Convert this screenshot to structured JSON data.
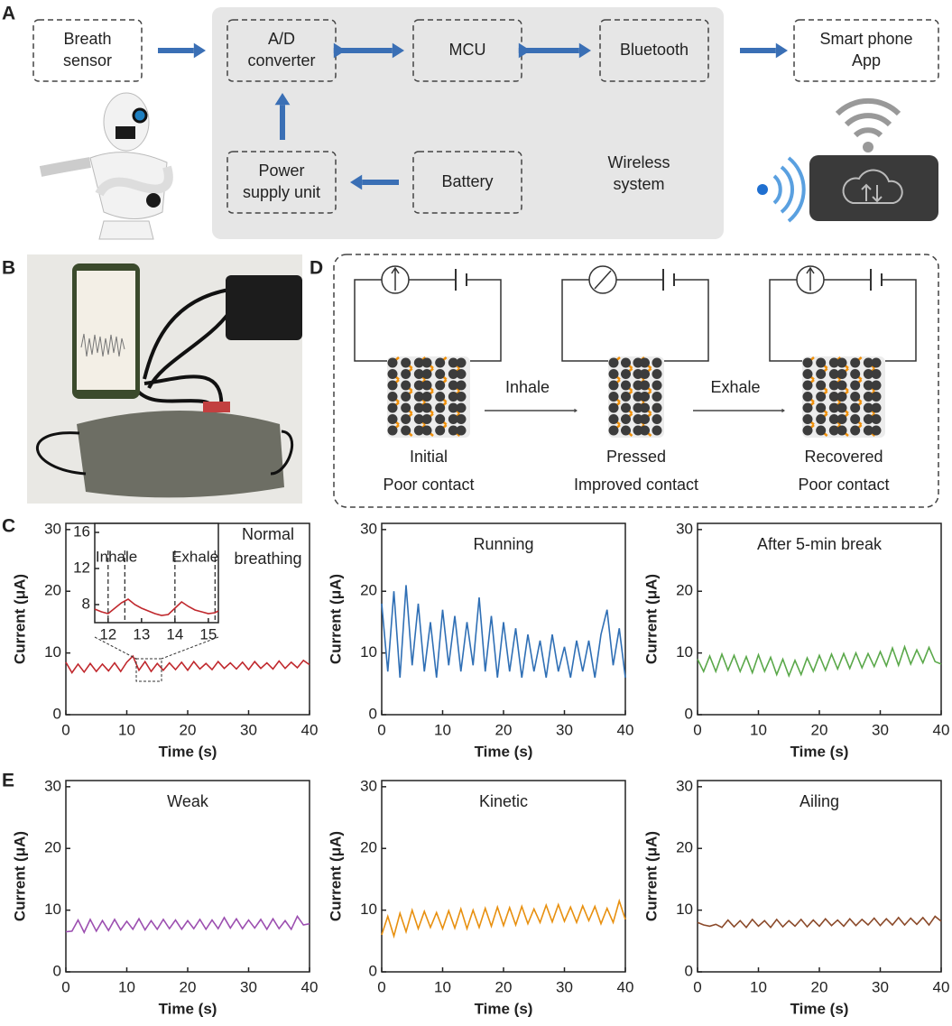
{
  "panels": [
    "A",
    "B",
    "C",
    "D",
    "E"
  ],
  "block_diagram": {
    "nodes": [
      [
        "Breath",
        "sensor"
      ],
      [
        "A/D",
        "converter"
      ],
      [
        "MCU"
      ],
      [
        "Bluetooth"
      ],
      [
        "Smart phone",
        "App"
      ],
      [
        "Power",
        "supply unit"
      ],
      [
        "Battery"
      ]
    ],
    "group_label": [
      "Wireless",
      "system"
    ]
  },
  "mechanism": {
    "states": [
      {
        "label": "Initial",
        "sublabel": "Poor contact"
      },
      {
        "label": "Pressed",
        "sublabel": "Improved contact"
      },
      {
        "label": "Recovered",
        "sublabel": "Poor contact"
      }
    ],
    "transitions": [
      "Inhale",
      "Exhale"
    ]
  },
  "chart_data": [
    {
      "type": "line",
      "title": [
        "Normal",
        "breathing"
      ],
      "xlabel": "Time (s)",
      "ylabel": "Current (μA)",
      "color": "#c0282d",
      "xlim": [
        0,
        40
      ],
      "xticks": [
        0,
        10,
        20,
        30,
        40
      ],
      "ylim": [
        0,
        31
      ],
      "yticks": [
        0,
        10,
        20,
        30
      ],
      "x": [
        0,
        1,
        2,
        3,
        4,
        5,
        6,
        7,
        8,
        9,
        10,
        11,
        12,
        13,
        14,
        15,
        16,
        17,
        18,
        19,
        20,
        21,
        22,
        23,
        24,
        25,
        26,
        27,
        28,
        29,
        30,
        31,
        32,
        33,
        34,
        35,
        36,
        37,
        38,
        39,
        40
      ],
      "values": [
        8.5,
        6.8,
        8.2,
        6.9,
        8.3,
        7.0,
        8.2,
        7.1,
        8.4,
        7.0,
        8.5,
        9.5,
        7.2,
        8.6,
        7.0,
        8.3,
        7.2,
        8.4,
        7.3,
        8.5,
        7.2,
        8.6,
        7.4,
        8.3,
        7.3,
        8.6,
        7.5,
        8.4,
        7.4,
        8.5,
        7.3,
        8.6,
        7.5,
        8.4,
        7.4,
        8.7,
        7.5,
        8.5,
        7.6,
        8.8,
        8.1
      ]
    },
    {
      "type": "line",
      "title": "Running",
      "xlabel": "Time (s)",
      "ylabel": "Current (μA)",
      "color": "#2f6fb5",
      "xlim": [
        0,
        40
      ],
      "xticks": [
        0,
        10,
        20,
        30,
        40
      ],
      "ylim": [
        0,
        31
      ],
      "yticks": [
        0,
        10,
        20,
        30
      ],
      "x": [
        0,
        1,
        2,
        3,
        4,
        5,
        6,
        7,
        8,
        9,
        10,
        11,
        12,
        13,
        14,
        15,
        16,
        17,
        18,
        19,
        20,
        21,
        22,
        23,
        24,
        25,
        26,
        27,
        28,
        29,
        30,
        31,
        32,
        33,
        34,
        35,
        36,
        37,
        38,
        39,
        40
      ],
      "values": [
        18,
        7,
        20,
        6,
        21,
        8,
        18,
        7,
        15,
        6,
        17,
        8,
        16,
        7,
        15,
        8,
        19,
        7,
        16,
        6,
        15,
        7,
        14,
        6,
        13,
        7,
        12,
        6,
        13,
        7,
        11,
        6,
        12,
        7,
        12,
        6,
        13,
        17,
        8,
        14,
        6
      ]
    },
    {
      "type": "line",
      "title": "After 5-min break",
      "xlabel": "Time (s)",
      "ylabel": "Current (μA)",
      "color": "#5aa84a",
      "xlim": [
        0,
        40
      ],
      "xticks": [
        0,
        10,
        20,
        30,
        40
      ],
      "ylim": [
        0,
        31
      ],
      "yticks": [
        0,
        10,
        20,
        30
      ],
      "x": [
        0,
        1,
        2,
        3,
        4,
        5,
        6,
        7,
        8,
        9,
        10,
        11,
        12,
        13,
        14,
        15,
        16,
        17,
        18,
        19,
        20,
        21,
        22,
        23,
        24,
        25,
        26,
        27,
        28,
        29,
        30,
        31,
        32,
        33,
        34,
        35,
        36,
        37,
        38,
        39,
        40
      ],
      "values": [
        9,
        7,
        9.5,
        7,
        9.8,
        7.2,
        9.6,
        7,
        9.4,
        6.8,
        9.7,
        7,
        9.3,
        6.5,
        9,
        6.3,
        8.8,
        6.5,
        9.2,
        7,
        9.6,
        7.2,
        9.8,
        7.4,
        9.9,
        7.5,
        10,
        7.6,
        9.9,
        7.8,
        10.2,
        7.9,
        10.8,
        8,
        11,
        8.2,
        10.5,
        8.4,
        10.9,
        8.6,
        8.2
      ]
    },
    {
      "type": "line",
      "title": "Weak",
      "xlabel": "Time (s)",
      "ylabel": "Current (μA)",
      "color": "#9c4fb0",
      "xlim": [
        0,
        40
      ],
      "xticks": [
        0,
        10,
        20,
        30,
        40
      ],
      "ylim": [
        0,
        31
      ],
      "yticks": [
        0,
        10,
        20,
        30
      ],
      "x": [
        0,
        1,
        2,
        3,
        4,
        5,
        6,
        7,
        8,
        9,
        10,
        11,
        12,
        13,
        14,
        15,
        16,
        17,
        18,
        19,
        20,
        21,
        22,
        23,
        24,
        25,
        26,
        27,
        28,
        29,
        30,
        31,
        32,
        33,
        34,
        35,
        36,
        37,
        38,
        39,
        40
      ],
      "values": [
        6.5,
        6.6,
        8.4,
        6.4,
        8.5,
        6.6,
        8.3,
        6.7,
        8.5,
        6.8,
        8.2,
        6.9,
        8.6,
        6.8,
        8.3,
        6.9,
        8.5,
        7.0,
        8.4,
        6.9,
        8.3,
        7.0,
        8.5,
        6.9,
        8.4,
        7.0,
        8.8,
        7.1,
        8.6,
        7.0,
        8.4,
        7.1,
        8.5,
        6.9,
        8.6,
        7.0,
        8.3,
        6.9,
        9.0,
        7.6,
        7.8
      ]
    },
    {
      "type": "line",
      "title": "Kinetic",
      "xlabel": "Time (s)",
      "ylabel": "Current (μA)",
      "color": "#e8900f",
      "xlim": [
        0,
        40
      ],
      "xticks": [
        0,
        10,
        20,
        30,
        40
      ],
      "ylim": [
        0,
        31
      ],
      "yticks": [
        0,
        10,
        20,
        30
      ],
      "x": [
        0,
        1,
        2,
        3,
        4,
        5,
        6,
        7,
        8,
        9,
        10,
        11,
        12,
        13,
        14,
        15,
        16,
        17,
        18,
        19,
        20,
        21,
        22,
        23,
        24,
        25,
        26,
        27,
        28,
        29,
        30,
        31,
        32,
        33,
        34,
        35,
        36,
        37,
        38,
        39,
        40
      ],
      "values": [
        6,
        9,
        5.8,
        9.5,
        6.5,
        10,
        7,
        9.8,
        7.2,
        9.6,
        7.0,
        9.9,
        7.1,
        10.2,
        7.0,
        10,
        7.2,
        10.3,
        7.4,
        10.5,
        7.5,
        10.4,
        7.6,
        10.6,
        7.8,
        10.2,
        8,
        10.8,
        8.1,
        10.9,
        8.2,
        10.5,
        8.0,
        10.7,
        8.3,
        10.6,
        7.8,
        10.3,
        8.0,
        11.5,
        8.5
      ]
    },
    {
      "type": "line",
      "title": "Ailing",
      "xlabel": "Time (s)",
      "ylabel": "Current (μA)",
      "color": "#8b4a2a",
      "xlim": [
        0,
        40
      ],
      "xticks": [
        0,
        10,
        20,
        30,
        40
      ],
      "ylim": [
        0,
        31
      ],
      "yticks": [
        0,
        10,
        20,
        30
      ],
      "x": [
        0,
        1,
        2,
        3,
        4,
        5,
        6,
        7,
        8,
        9,
        10,
        11,
        12,
        13,
        14,
        15,
        16,
        17,
        18,
        19,
        20,
        21,
        22,
        23,
        24,
        25,
        26,
        27,
        28,
        29,
        30,
        31,
        32,
        33,
        34,
        35,
        36,
        37,
        38,
        39,
        40
      ],
      "values": [
        8,
        7.6,
        7.4,
        7.7,
        7.2,
        8.4,
        7.3,
        8.3,
        7.2,
        8.5,
        7.4,
        8.3,
        7.2,
        8.5,
        7.3,
        8.3,
        7.4,
        8.5,
        7.3,
        8.4,
        7.4,
        8.6,
        7.5,
        8.4,
        7.4,
        8.6,
        7.5,
        8.5,
        7.6,
        8.7,
        7.5,
        8.6,
        7.6,
        8.8,
        7.6,
        8.7,
        7.7,
        8.8,
        7.6,
        9.0,
        8.2
      ]
    },
    {
      "type": "line",
      "color": "#c0282d",
      "xlim": [
        11.6,
        15.3
      ],
      "xticks": [
        12,
        13,
        14,
        15
      ],
      "ylim": [
        6,
        17
      ],
      "yticks": [
        8,
        12,
        16
      ],
      "x": [
        11.6,
        11.8,
        12.0,
        12.2,
        12.4,
        12.6,
        12.8,
        13.0,
        13.2,
        13.4,
        13.6,
        13.8,
        14.0,
        14.2,
        14.4,
        14.6,
        14.8,
        15.0,
        15.2,
        15.3
      ],
      "values": [
        7.5,
        7.2,
        7.0,
        7.6,
        8.2,
        8.6,
        8.0,
        7.6,
        7.3,
        7.0,
        6.8,
        6.9,
        7.6,
        8.3,
        7.8,
        7.4,
        7.2,
        7.0,
        7.1,
        7.3
      ],
      "annotations": [
        {
          "label": "Inhale",
          "x": [
            12.0,
            12.5
          ]
        },
        {
          "label": "Exhale",
          "x": [
            14.0,
            15.2
          ]
        }
      ]
    }
  ]
}
